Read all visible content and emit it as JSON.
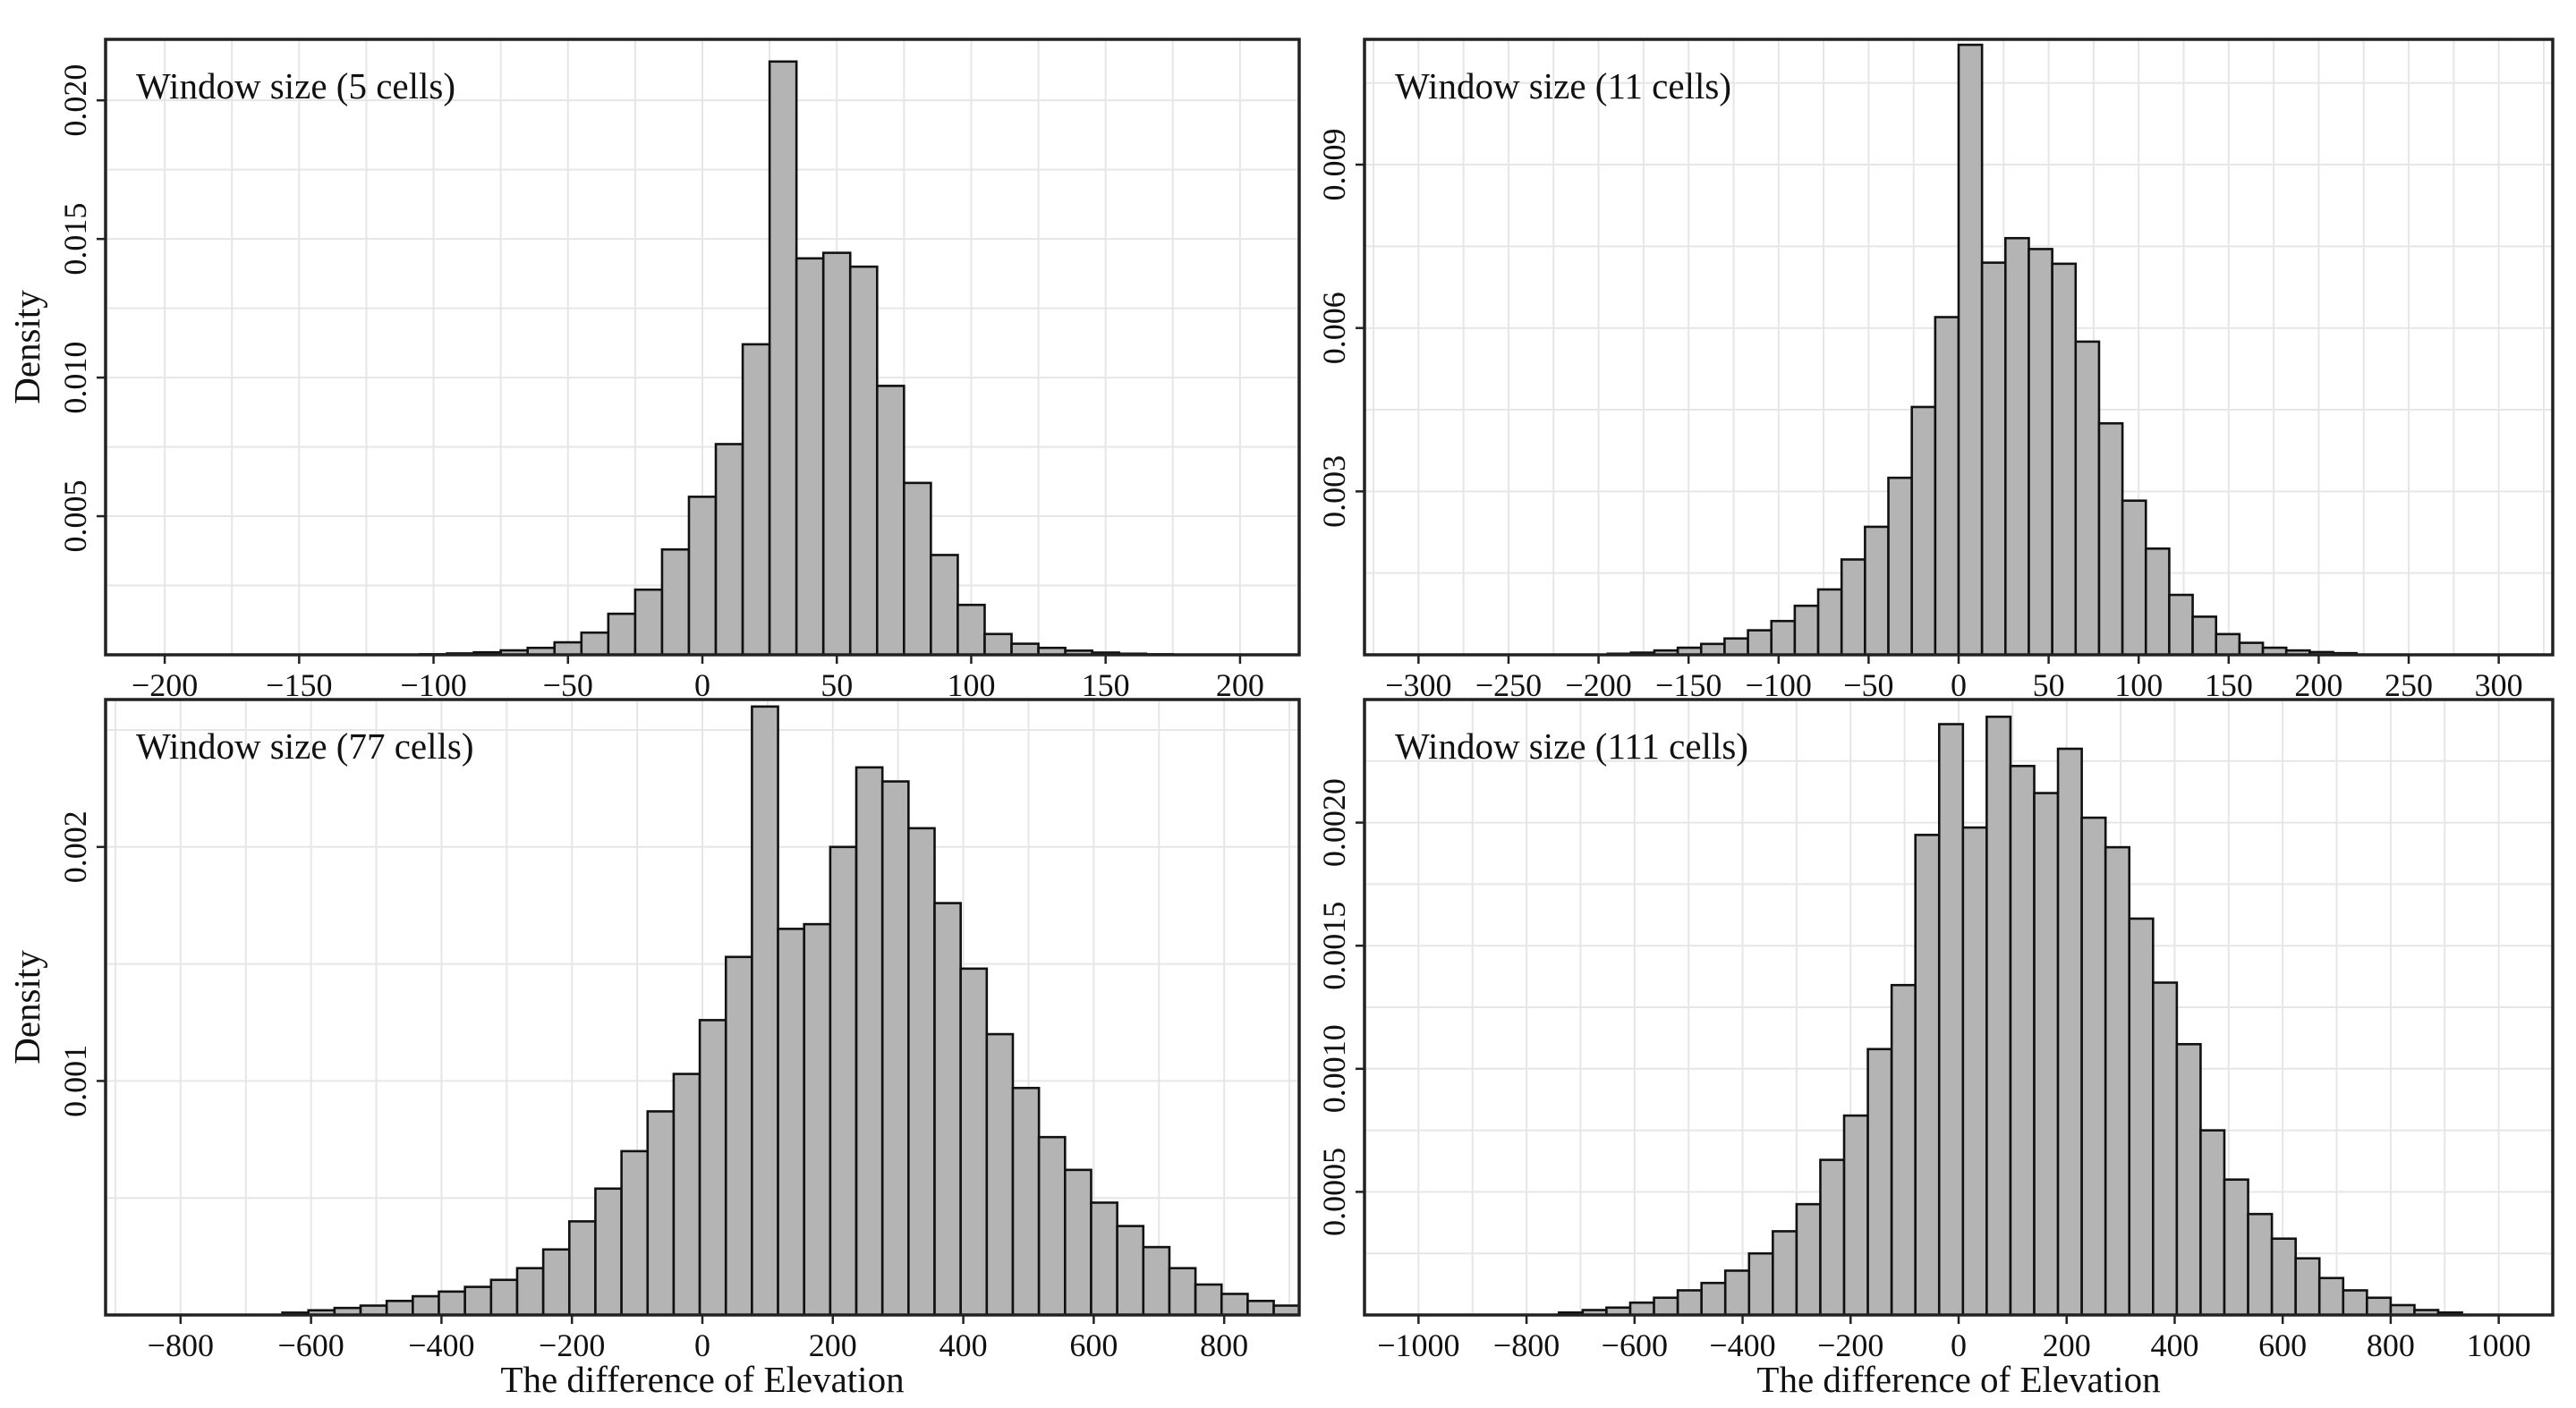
{
  "chart_data": [
    {
      "type": "bar",
      "title": "Window size (5 cells)",
      "xlabel": "",
      "ylabel": "Density",
      "xlim": [
        -222,
        222
      ],
      "ylim": [
        0,
        0.0222
      ],
      "xticks": [
        -200,
        -150,
        -100,
        -50,
        0,
        50,
        100,
        150,
        200
      ],
      "xtick_labels": [
        "−200",
        "−150",
        "−100",
        "−50",
        "0",
        "50",
        "100",
        "150",
        "200"
      ],
      "yticks": [
        0.005,
        0.01,
        0.015,
        0.02
      ],
      "ytick_labels": [
        "0.005",
        "0.010",
        "0.015",
        "0.020"
      ],
      "grid": true,
      "bin_start": -105,
      "bin_width": 10,
      "values": [
        2e-05,
        5e-05,
        9e-05,
        0.00016,
        0.00025,
        0.00045,
        0.0008,
        0.00148,
        0.00235,
        0.0038,
        0.0057,
        0.0076,
        0.0112,
        0.0214,
        0.0143,
        0.0145,
        0.014,
        0.0097,
        0.0062,
        0.0036,
        0.0018,
        0.00075,
        0.0004,
        0.00025,
        0.00015,
        8e-05,
        4e-05,
        2e-05
      ]
    },
    {
      "type": "bar",
      "title": "Window size (11 cells)",
      "xlabel": "",
      "ylabel": "",
      "xlim": [
        -330,
        330
      ],
      "ylim": [
        0,
        0.0113
      ],
      "xticks": [
        -300,
        -250,
        -200,
        -150,
        -100,
        -50,
        0,
        50,
        100,
        150,
        200,
        250,
        300
      ],
      "xtick_labels": [
        "−300",
        "−250",
        "−200",
        "−150",
        "−100",
        "−50",
        "0",
        "50",
        "100",
        "150",
        "200",
        "250",
        "300"
      ],
      "yticks": [
        0.003,
        0.006,
        0.009
      ],
      "ytick_labels": [
        "0.003",
        "0.006",
        "0.009"
      ],
      "grid": true,
      "bin_start": -195,
      "bin_width": 13,
      "values": [
        2e-05,
        4e-05,
        8e-05,
        0.00013,
        0.0002,
        0.0003,
        0.00045,
        0.00062,
        0.0009,
        0.0012,
        0.00175,
        0.00235,
        0.00325,
        0.00455,
        0.0062,
        0.0112,
        0.0072,
        0.00765,
        0.00745,
        0.00718,
        0.00575,
        0.00425,
        0.00283,
        0.00195,
        0.0011,
        0.0007,
        0.00038,
        0.00022,
        0.00013,
        8e-05,
        5e-05,
        3e-05
      ]
    },
    {
      "type": "bar",
      "title": "Window size (77 cells)",
      "xlabel": "The difference of Elevation",
      "ylabel": "Density",
      "xlim": [
        -915,
        915
      ],
      "ylim": [
        0,
        0.00263
      ],
      "xticks": [
        -800,
        -600,
        -400,
        -200,
        0,
        200,
        400,
        600,
        800
      ],
      "xtick_labels": [
        "−800",
        "−600",
        "−400",
        "−200",
        "0",
        "200",
        "400",
        "600",
        "800"
      ],
      "yticks": [
        0.001,
        0.002
      ],
      "ytick_labels": [
        "0.001",
        "0.002"
      ],
      "grid": true,
      "bin_start": -644,
      "bin_width": 40,
      "values": [
        1e-05,
        2e-05,
        3e-05,
        4e-05,
        6e-05,
        8e-05,
        0.0001,
        0.00012,
        0.00015,
        0.0002,
        0.00028,
        0.0004,
        0.00054,
        0.0007,
        0.00087,
        0.00103,
        0.00126,
        0.00153,
        0.0026,
        0.00165,
        0.00167,
        0.002,
        0.00234,
        0.00228,
        0.00208,
        0.00176,
        0.00148,
        0.0012,
        0.00097,
        0.00076,
        0.00062,
        0.00048,
        0.00038,
        0.00029,
        0.0002,
        0.00013,
        9e-05,
        6e-05,
        4e-05,
        2e-05,
        1e-05
      ]
    },
    {
      "type": "bar",
      "title": "Window size (111 cells)",
      "xlabel": "The difference of Elevation",
      "ylabel": "",
      "xlim": [
        -1100,
        1100
      ],
      "ylim": [
        0,
        0.0025
      ],
      "xticks": [
        -1000,
        -800,
        -600,
        -400,
        -200,
        0,
        200,
        400,
        600,
        800,
        1000
      ],
      "xtick_labels": [
        "−1000",
        "−800",
        "−600",
        "−400",
        "−200",
        "0",
        "200",
        "400",
        "600",
        "800",
        "1000"
      ],
      "yticks": [
        0.0005,
        0.001,
        0.0015,
        0.002
      ],
      "ytick_labels": [
        "0.0005",
        "0.0010",
        "0.0015",
        "0.0020"
      ],
      "grid": true,
      "bin_start": -740,
      "bin_width": 44,
      "values": [
        1e-05,
        2e-05,
        3e-05,
        5e-05,
        7e-05,
        0.0001,
        0.00013,
        0.00018,
        0.00025,
        0.00034,
        0.00045,
        0.00063,
        0.00081,
        0.00108,
        0.00134,
        0.00195,
        0.0024,
        0.00198,
        0.00243,
        0.00223,
        0.00212,
        0.0023,
        0.00202,
        0.0019,
        0.00161,
        0.00135,
        0.0011,
        0.00075,
        0.00055,
        0.00041,
        0.00031,
        0.00023,
        0.00015,
        0.0001,
        7e-05,
        4e-05,
        2e-05,
        1e-05
      ]
    }
  ]
}
